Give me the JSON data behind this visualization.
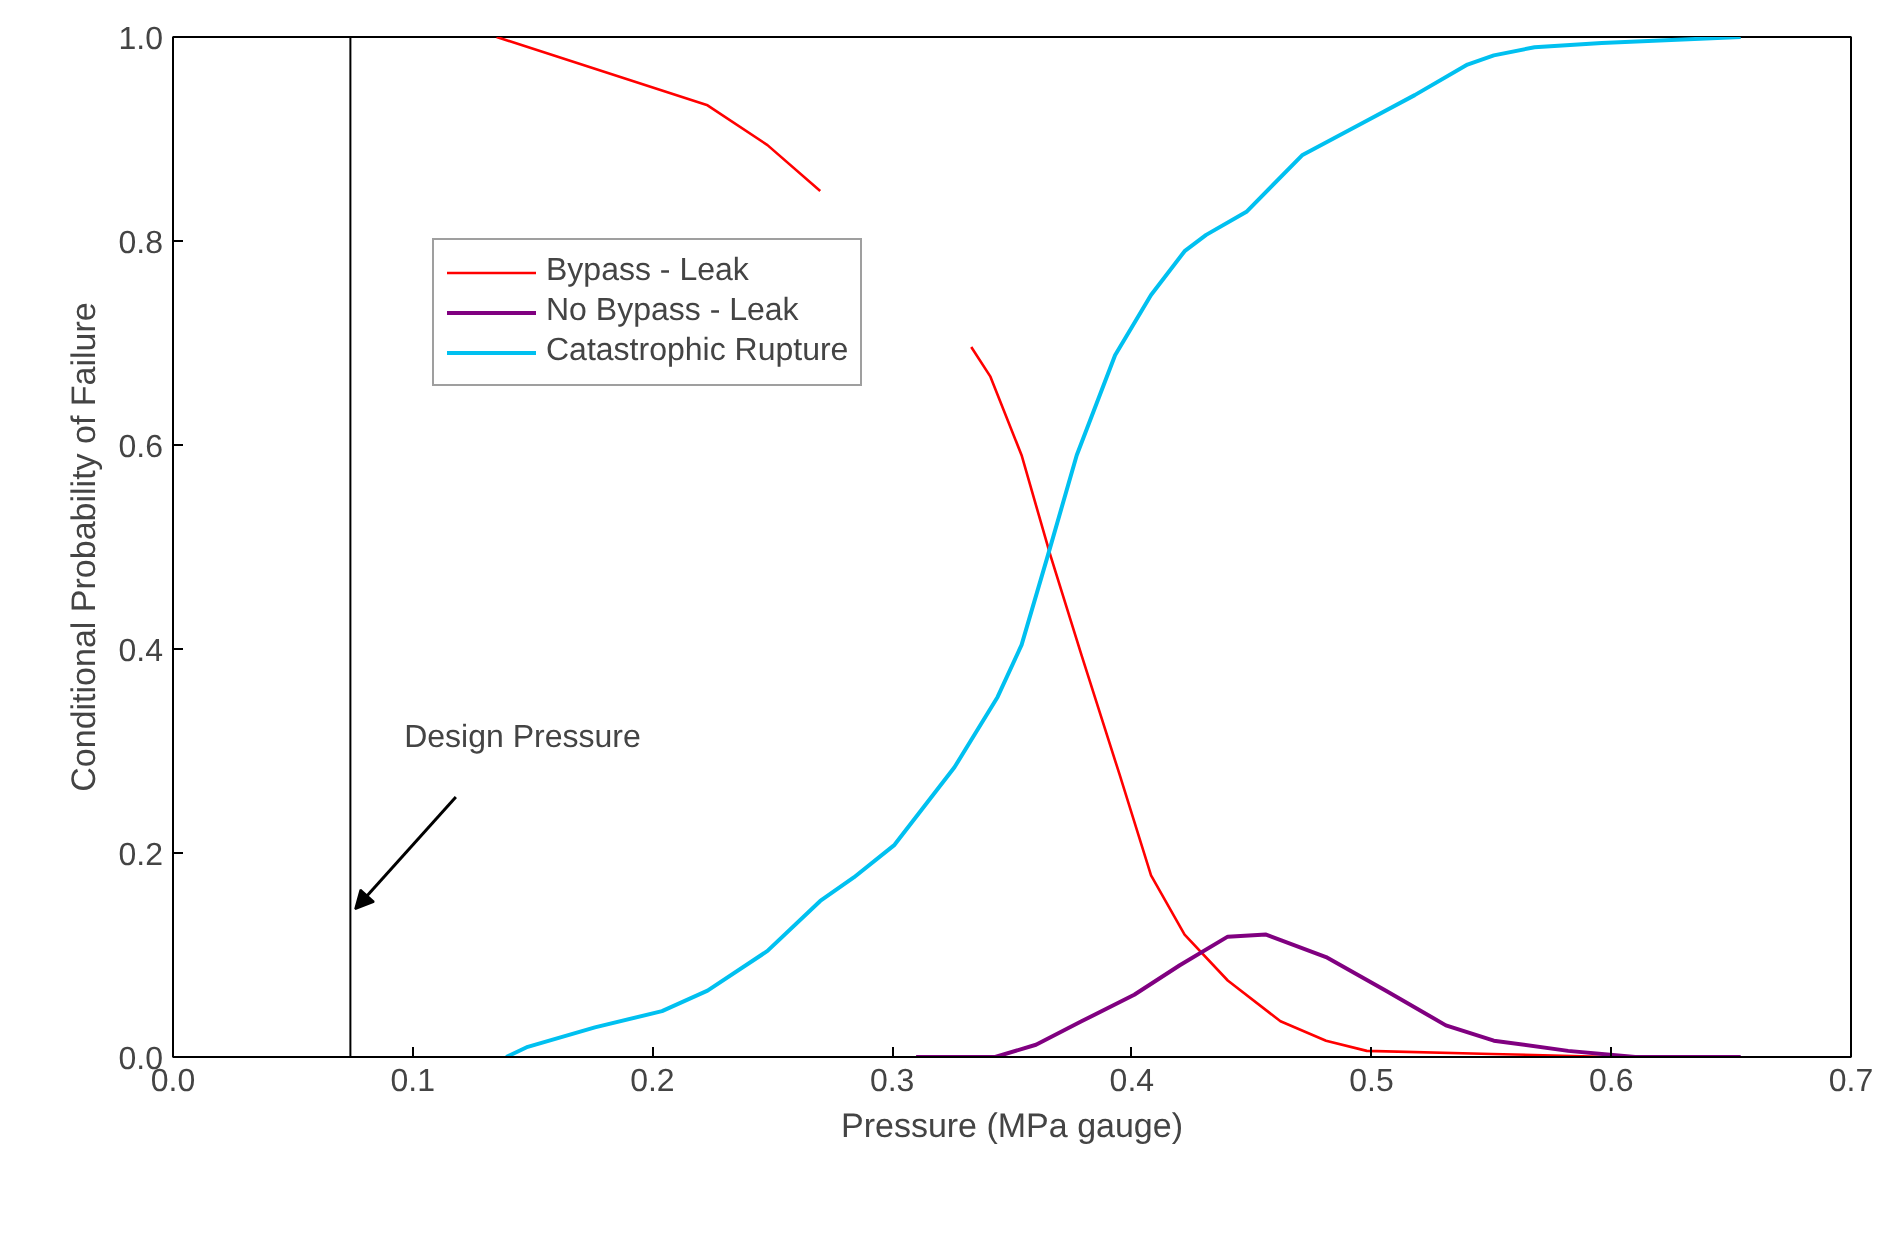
{
  "chart_data": {
    "type": "line",
    "xlabel": "Pressure (MPa gauge)",
    "ylabel": "Conditional Probability of Failure",
    "xlim": [
      0,
      0.7
    ],
    "ylim": [
      0,
      1
    ],
    "xticks": [
      {
        "value": 0,
        "label": "0.0"
      },
      {
        "value": 0.1,
        "label": "0.1"
      },
      {
        "value": 0.2,
        "label": "0.2"
      },
      {
        "value": 0.3,
        "label": "0.3"
      },
      {
        "value": 0.4,
        "label": "0.4"
      },
      {
        "value": 0.5,
        "label": "0.5"
      },
      {
        "value": 0.6,
        "label": "0.6"
      },
      {
        "value": 0.7,
        "label": "0.7"
      }
    ],
    "yticks": [
      {
        "value": 0,
        "label": "0.0"
      },
      {
        "value": 0.2,
        "label": "0.2"
      },
      {
        "value": 0.4,
        "label": "0.4"
      },
      {
        "value": 0.6,
        "label": "0.6"
      },
      {
        "value": 0.8,
        "label": "0.8"
      },
      {
        "value": 1,
        "label": "1.0"
      }
    ],
    "grid": false,
    "legend": "top left",
    "marker": "none",
    "line_style": "solid",
    "ref_lines": [
      {
        "axis": "x",
        "value": 0.074,
        "label": "Design Pressure",
        "color": "#000000"
      }
    ],
    "series": [
      {
        "name": "Bypass - Leak",
        "color": "#ff0000",
        "x": [
          0.135,
          0.223,
          0.248,
          0.27,
          0.3,
          0.333,
          0.341,
          0.354,
          0.366,
          0.379,
          0.395,
          0.408,
          0.422,
          0.44,
          0.462,
          0.481,
          0.498,
          0.55,
          0.6
        ],
        "values": [
          1.0,
          0.933,
          0.894,
          0.849,
          null,
          0.696,
          0.667,
          0.59,
          0.492,
          0.394,
          0.276,
          0.178,
          0.12,
          0.075,
          0.035,
          0.016,
          0.006,
          0.003,
          0.0
        ]
      },
      {
        "name": "No Bypass - Leak",
        "color": "#800080",
        "x": [
          0.31,
          0.343,
          0.36,
          0.379,
          0.401,
          0.42,
          0.44,
          0.456,
          0.481,
          0.506,
          0.531,
          0.551,
          0.582,
          0.61,
          0.654
        ],
        "values": [
          0.0,
          0.0,
          0.012,
          0.035,
          0.061,
          0.09,
          0.118,
          0.12,
          0.098,
          0.065,
          0.031,
          0.016,
          0.006,
          0.0,
          0.0
        ]
      },
      {
        "name": "Catastrophic Rupture",
        "color": "#00c0f0",
        "x": [
          0.139,
          0.148,
          0.176,
          0.204,
          0.223,
          0.248,
          0.27,
          0.284,
          0.301,
          0.326,
          0.344,
          0.354,
          0.365,
          0.377,
          0.393,
          0.408,
          0.422,
          0.431,
          0.448,
          0.471,
          0.498,
          0.518,
          0.54,
          0.551,
          0.568,
          0.596,
          0.654
        ],
        "values": [
          0.0,
          0.01,
          0.029,
          0.045,
          0.065,
          0.104,
          0.153,
          0.176,
          0.208,
          0.284,
          0.353,
          0.404,
          0.492,
          0.59,
          0.688,
          0.747,
          0.79,
          0.806,
          0.829,
          0.884,
          0.918,
          0.943,
          0.973,
          0.982,
          0.99,
          0.994,
          1.0
        ]
      }
    ]
  }
}
